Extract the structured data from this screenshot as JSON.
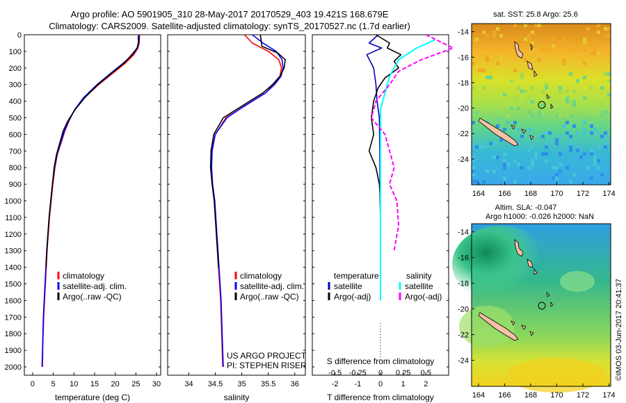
{
  "header": {
    "line1": "Argo profile: AO 5901905_310 28-May-2017 20170529_403 19.421S 168.679E",
    "line2": "Climatology: CARS2009. Satellite-adjusted climatology: synTS_20170527.nc (1.7d earlier)"
  },
  "credits": {
    "project": "US ARGO PROJECT",
    "pi": "PI: STEPHEN RISER",
    "stamp": "©IMOS 03-Jun-2017 20:41:37"
  },
  "legends": {
    "tsal": [
      "climatology",
      "satellite-adj. clim.",
      "Argo(..raw -QC)"
    ],
    "diff": {
      "temperature": "temperature",
      "salinity": "salinity",
      "satellite": "satellite",
      "argo_adj": "Argo(-adj)"
    }
  },
  "maps": {
    "sst_title": "sat. SST: 25.8  Argo: 25.6",
    "sla_title_1": "Altim. SLA: -0.047",
    "sla_title_2": "Argo h1000: -0.026 h2000: NaN"
  },
  "colors": {
    "climatology": "#ff0000",
    "satellite": "#0000ff",
    "argo": "#000000",
    "salinity_satellite": "#00ffff",
    "salinity_argo": "#ff00ff",
    "temp_diff_satellite": "#0000b4",
    "land": "#f5c2a6"
  },
  "chart_data": [
    {
      "type": "line",
      "xlabel": "temperature (deg C)",
      "ylim": [
        2050,
        0
      ],
      "xlim": [
        -2,
        31
      ],
      "xticks": [
        "0",
        "5",
        "10",
        "15",
        "20",
        "25",
        "30"
      ],
      "yticks": [
        "0",
        "100",
        "200",
        "300",
        "400",
        "500",
        "600",
        "700",
        "800",
        "900",
        "1000",
        "1100",
        "1200",
        "1300",
        "1400",
        "1500",
        "1600",
        "1700",
        "1800",
        "1900",
        "2000"
      ],
      "series": [
        {
          "name": "climatology",
          "x": [
            25.9,
            25.8,
            25.5,
            24.5,
            22.5,
            19.5,
            16.0,
            12.5,
            10.2,
            8.8,
            7.8,
            6.9,
            6.0,
            5.4,
            4.9,
            4.5,
            4.1,
            3.8,
            3.5,
            3.3,
            3.1,
            2.9,
            2.7,
            2.5,
            2.4
          ],
          "y": [
            0,
            50,
            80,
            120,
            170,
            230,
            300,
            380,
            450,
            520,
            580,
            650,
            720,
            800,
            900,
            1000,
            1100,
            1200,
            1300,
            1400,
            1500,
            1600,
            1700,
            1850,
            2000
          ]
        },
        {
          "name": "satellite-adj. clim.",
          "x": [
            25.8,
            25.7,
            25.4,
            24.2,
            22.0,
            19.0,
            15.6,
            12.3,
            10.2,
            8.7,
            7.7,
            6.8,
            5.9,
            5.3,
            4.8,
            4.4,
            4.0,
            3.7,
            3.4,
            3.2,
            3.0,
            2.8,
            2.6,
            2.45,
            2.3
          ],
          "y": [
            0,
            50,
            80,
            120,
            170,
            230,
            300,
            380,
            450,
            520,
            580,
            650,
            720,
            800,
            900,
            1000,
            1100,
            1200,
            1300,
            1400,
            1500,
            1600,
            1700,
            1850,
            2000
          ]
        },
        {
          "name": "Argo(..raw -QC)",
          "x": [
            25.6,
            25.6,
            25.3,
            24.0,
            22.2,
            19.2,
            15.8,
            12.6,
            10.3,
            8.5,
            7.4,
            6.6,
            5.8,
            5.2,
            4.8,
            4.4,
            4.0,
            3.7,
            3.45,
            3.25
          ],
          "y": [
            5,
            50,
            80,
            120,
            170,
            230,
            300,
            380,
            450,
            520,
            580,
            650,
            720,
            800,
            900,
            1000,
            1100,
            1200,
            1300,
            1400
          ]
        }
      ]
    },
    {
      "type": "line",
      "xlabel": "salinity",
      "ylim": [
        2050,
        0
      ],
      "xlim": [
        33.6,
        36.2
      ],
      "xticks": [
        "34",
        "34.5",
        "35",
        "35.5",
        "36"
      ],
      "series": [
        {
          "name": "climatology",
          "x": [
            35.05,
            35.2,
            35.5,
            35.7,
            35.75,
            35.72,
            35.6,
            35.45,
            35.2,
            34.95,
            34.7,
            34.5,
            34.43,
            34.42,
            34.44,
            34.48,
            34.52,
            34.56,
            34.6,
            34.62,
            34.64
          ],
          "y": [
            0,
            50,
            100,
            150,
            200,
            250,
            300,
            350,
            400,
            450,
            500,
            600,
            700,
            800,
            900,
            1000,
            1200,
            1400,
            1600,
            1800,
            2000
          ]
        },
        {
          "name": "satellite-adj. clim.",
          "x": [
            35.2,
            35.4,
            35.65,
            35.76,
            35.78,
            35.74,
            35.62,
            35.45,
            35.2,
            34.95,
            34.72,
            34.5,
            34.44,
            34.43,
            34.45,
            34.49,
            34.53,
            34.57,
            34.61,
            34.63,
            34.65
          ],
          "y": [
            0,
            50,
            100,
            150,
            200,
            250,
            300,
            350,
            400,
            450,
            500,
            600,
            700,
            800,
            900,
            1000,
            1200,
            1400,
            1600,
            1800,
            2000
          ]
        },
        {
          "name": "Argo(..raw -QC)",
          "x": [
            35.35,
            35.38,
            35.68,
            35.82,
            35.8,
            35.72,
            35.58,
            35.4,
            35.15,
            34.9,
            34.65,
            34.47,
            34.42,
            34.41,
            34.44,
            34.48,
            34.52,
            34.56
          ],
          "y": [
            0,
            70,
            110,
            150,
            200,
            250,
            300,
            350,
            400,
            450,
            500,
            600,
            700,
            800,
            900,
            1000,
            1200,
            1400
          ]
        }
      ]
    },
    {
      "type": "line",
      "xlabel": "T difference from climatology",
      "x2label": "S difference from climatology",
      "ylim": [
        2050,
        0
      ],
      "xlim": [
        -3,
        3
      ],
      "xticks": [
        "-2",
        "-1",
        "0",
        "1",
        "2"
      ],
      "x2ticks": [
        "-0.5",
        "-0.25",
        "0",
        "0.25",
        "0.5"
      ],
      "series": [
        {
          "name": "temperature satellite",
          "x": [
            -0.1,
            -0.5,
            0.05,
            -0.6,
            -0.3,
            -0.2,
            -0.15,
            -0.05,
            -0.03,
            -0.02,
            0
          ],
          "y": [
            0,
            50,
            80,
            120,
            200,
            300,
            400,
            500,
            700,
            1000,
            1100
          ]
        },
        {
          "name": "temperature Argo(-adj)",
          "x": [
            -0.2,
            0.4,
            0.3,
            0.9,
            0.6,
            0.8,
            0.2,
            -0.1,
            -0.3,
            -0.4,
            -0.3,
            -0.5,
            -0.2,
            -0.05,
            0
          ],
          "y": [
            0,
            50,
            80,
            120,
            160,
            200,
            260,
            320,
            400,
            500,
            600,
            700,
            800,
            900,
            1000
          ]
        },
        {
          "name": "salinity satellite",
          "x": [
            0.6,
            0.4,
            0.2,
            0.1,
            0.05,
            0.0,
            0.0,
            0.0,
            0.0,
            0.0,
            0.0
          ],
          "y": [
            30,
            80,
            150,
            250,
            350,
            450,
            600,
            800,
            1000,
            1300,
            1600
          ]
        },
        {
          "name": "salinity Argo(-adj)",
          "x": [
            0.5,
            0.8,
            0.45,
            0.2,
            0.1,
            -0.05,
            -0.1,
            0.05,
            0.1,
            0.15,
            0.1,
            0.18,
            0.2,
            0.15
          ],
          "y": [
            0,
            80,
            150,
            220,
            300,
            400,
            500,
            600,
            700,
            800,
            900,
            1000,
            1150,
            1300
          ]
        }
      ]
    }
  ]
}
